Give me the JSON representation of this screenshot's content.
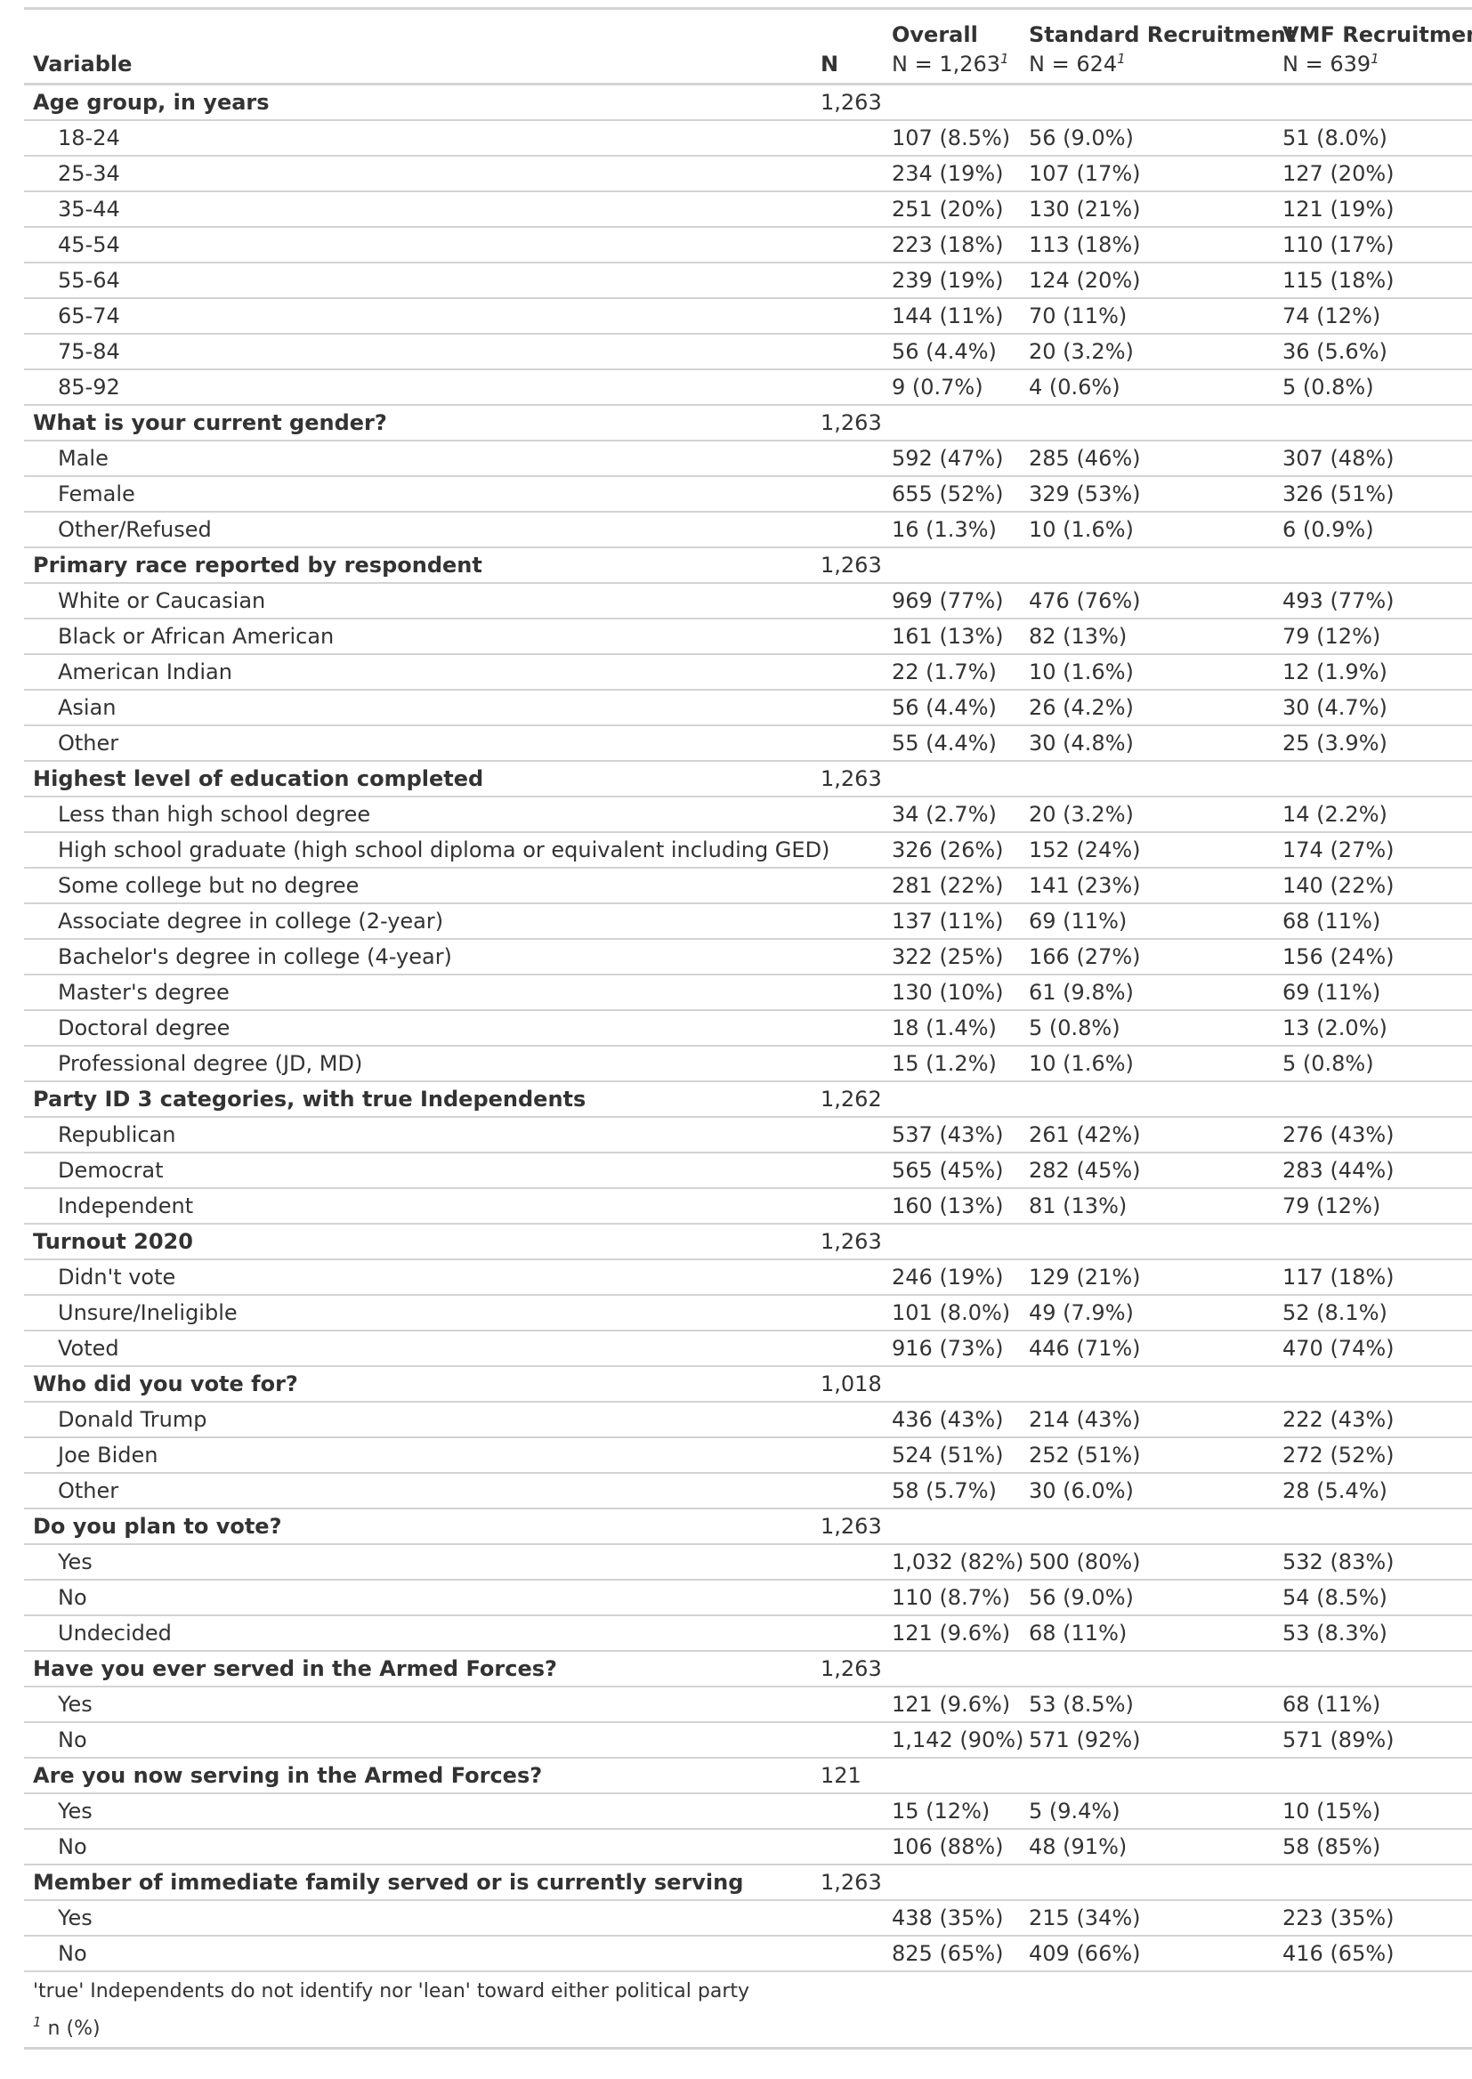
{
  "table": {
    "headers": {
      "variable": "Variable",
      "n": "N",
      "overall": {
        "label": "Overall",
        "sub": "N = 1,263",
        "fn": "1"
      },
      "standard": {
        "label": "Standard Recruitment",
        "sub": "N = 624",
        "fn": "1"
      },
      "vmf": {
        "label": "VMF Recruitment",
        "sub": "N = 639",
        "fn": "1"
      }
    },
    "groups": [
      {
        "label": "Age group, in years",
        "n": "1,263",
        "rows": [
          {
            "label": "18-24",
            "overall": "107 (8.5%)",
            "standard": "56 (9.0%)",
            "vmf": "51 (8.0%)"
          },
          {
            "label": "25-34",
            "overall": "234 (19%)",
            "standard": "107 (17%)",
            "vmf": "127 (20%)"
          },
          {
            "label": "35-44",
            "overall": "251 (20%)",
            "standard": "130 (21%)",
            "vmf": "121 (19%)"
          },
          {
            "label": "45-54",
            "overall": "223 (18%)",
            "standard": "113 (18%)",
            "vmf": "110 (17%)"
          },
          {
            "label": "55-64",
            "overall": "239 (19%)",
            "standard": "124 (20%)",
            "vmf": "115 (18%)"
          },
          {
            "label": "65-74",
            "overall": "144 (11%)",
            "standard": "70 (11%)",
            "vmf": "74 (12%)"
          },
          {
            "label": "75-84",
            "overall": "56 (4.4%)",
            "standard": "20 (3.2%)",
            "vmf": "36 (5.6%)"
          },
          {
            "label": "85-92",
            "overall": "9 (0.7%)",
            "standard": "4 (0.6%)",
            "vmf": "5 (0.8%)"
          }
        ]
      },
      {
        "label": "What is your current gender?",
        "n": "1,263",
        "rows": [
          {
            "label": "Male",
            "overall": "592 (47%)",
            "standard": "285 (46%)",
            "vmf": "307 (48%)"
          },
          {
            "label": "Female",
            "overall": "655 (52%)",
            "standard": "329 (53%)",
            "vmf": "326 (51%)"
          },
          {
            "label": "Other/Refused",
            "overall": "16 (1.3%)",
            "standard": "10 (1.6%)",
            "vmf": "6 (0.9%)"
          }
        ]
      },
      {
        "label": "Primary race reported by respondent",
        "n": "1,263",
        "rows": [
          {
            "label": "White or Caucasian",
            "overall": "969 (77%)",
            "standard": "476 (76%)",
            "vmf": "493 (77%)"
          },
          {
            "label": "Black or African American",
            "overall": "161 (13%)",
            "standard": "82 (13%)",
            "vmf": "79 (12%)"
          },
          {
            "label": "American Indian",
            "overall": "22 (1.7%)",
            "standard": "10 (1.6%)",
            "vmf": "12 (1.9%)"
          },
          {
            "label": "Asian",
            "overall": "56 (4.4%)",
            "standard": "26 (4.2%)",
            "vmf": "30 (4.7%)"
          },
          {
            "label": "Other",
            "overall": "55 (4.4%)",
            "standard": "30 (4.8%)",
            "vmf": "25 (3.9%)"
          }
        ]
      },
      {
        "label": "Highest level of education completed",
        "n": "1,263",
        "rows": [
          {
            "label": "Less than high school degree",
            "overall": "34 (2.7%)",
            "standard": "20 (3.2%)",
            "vmf": "14 (2.2%)"
          },
          {
            "label": "High school graduate (high school diploma or equivalent including GED)",
            "overall": "326 (26%)",
            "standard": "152 (24%)",
            "vmf": "174 (27%)"
          },
          {
            "label": "Some college but no degree",
            "overall": "281 (22%)",
            "standard": "141 (23%)",
            "vmf": "140 (22%)"
          },
          {
            "label": "Associate degree in college (2-year)",
            "overall": "137 (11%)",
            "standard": "69 (11%)",
            "vmf": "68 (11%)"
          },
          {
            "label": "Bachelor's degree in college (4-year)",
            "overall": "322 (25%)",
            "standard": "166 (27%)",
            "vmf": "156 (24%)"
          },
          {
            "label": "Master's degree",
            "overall": "130 (10%)",
            "standard": "61 (9.8%)",
            "vmf": "69 (11%)"
          },
          {
            "label": "Doctoral degree",
            "overall": "18 (1.4%)",
            "standard": "5 (0.8%)",
            "vmf": "13 (2.0%)"
          },
          {
            "label": "Professional degree (JD, MD)",
            "overall": "15 (1.2%)",
            "standard": "10 (1.6%)",
            "vmf": "5 (0.8%)"
          }
        ]
      },
      {
        "label": "Party ID 3 categories, with true Independents",
        "n": "1,262",
        "rows": [
          {
            "label": "Republican",
            "overall": "537 (43%)",
            "standard": "261 (42%)",
            "vmf": "276 (43%)"
          },
          {
            "label": "Democrat",
            "overall": "565 (45%)",
            "standard": "282 (45%)",
            "vmf": "283 (44%)"
          },
          {
            "label": "Independent",
            "overall": "160 (13%)",
            "standard": "81 (13%)",
            "vmf": "79 (12%)"
          }
        ]
      },
      {
        "label": "Turnout 2020",
        "n": "1,263",
        "rows": [
          {
            "label": "Didn't vote",
            "overall": "246 (19%)",
            "standard": "129 (21%)",
            "vmf": "117 (18%)"
          },
          {
            "label": "Unsure/Ineligible",
            "overall": "101 (8.0%)",
            "standard": "49 (7.9%)",
            "vmf": "52 (8.1%)"
          },
          {
            "label": "Voted",
            "overall": "916 (73%)",
            "standard": "446 (71%)",
            "vmf": "470 (74%)"
          }
        ]
      },
      {
        "label": "Who did you vote for?",
        "n": "1,018",
        "rows": [
          {
            "label": "Donald Trump",
            "overall": "436 (43%)",
            "standard": "214 (43%)",
            "vmf": "222 (43%)"
          },
          {
            "label": "Joe Biden",
            "overall": "524 (51%)",
            "standard": "252 (51%)",
            "vmf": "272 (52%)"
          },
          {
            "label": "Other",
            "overall": "58 (5.7%)",
            "standard": "30 (6.0%)",
            "vmf": "28 (5.4%)"
          }
        ]
      },
      {
        "label": "Do you plan to vote?",
        "n": "1,263",
        "rows": [
          {
            "label": "Yes",
            "overall": "1,032 (82%)",
            "standard": "500 (80%)",
            "vmf": "532 (83%)"
          },
          {
            "label": "No",
            "overall": "110 (8.7%)",
            "standard": "56 (9.0%)",
            "vmf": "54 (8.5%)"
          },
          {
            "label": "Undecided",
            "overall": "121 (9.6%)",
            "standard": "68 (11%)",
            "vmf": "53 (8.3%)"
          }
        ]
      },
      {
        "label": "Have you ever served in the Armed Forces?",
        "n": "1,263",
        "rows": [
          {
            "label": "Yes",
            "overall": "121 (9.6%)",
            "standard": "53 (8.5%)",
            "vmf": "68 (11%)"
          },
          {
            "label": "No",
            "overall": "1,142 (90%)",
            "standard": "571 (92%)",
            "vmf": "571 (89%)"
          }
        ]
      },
      {
        "label": "Are you now serving in the Armed Forces?",
        "n": "121",
        "rows": [
          {
            "label": "Yes",
            "overall": "15 (12%)",
            "standard": "5 (9.4%)",
            "vmf": "10 (15%)"
          },
          {
            "label": "No",
            "overall": "106 (88%)",
            "standard": "48 (91%)",
            "vmf": "58 (85%)"
          }
        ]
      },
      {
        "label": "Member of immediate family served or is currently serving",
        "n": "1,263",
        "rows": [
          {
            "label": "Yes",
            "overall": "438 (35%)",
            "standard": "215 (34%)",
            "vmf": "223 (35%)"
          },
          {
            "label": "No",
            "overall": "825 (65%)",
            "standard": "409 (66%)",
            "vmf": "416 (65%)"
          }
        ]
      }
    ],
    "footnotes": {
      "note": "'true' Independents do not identify nor 'lean' toward either political party",
      "fn_mark": "1",
      "fn_text": "n (%)"
    }
  }
}
